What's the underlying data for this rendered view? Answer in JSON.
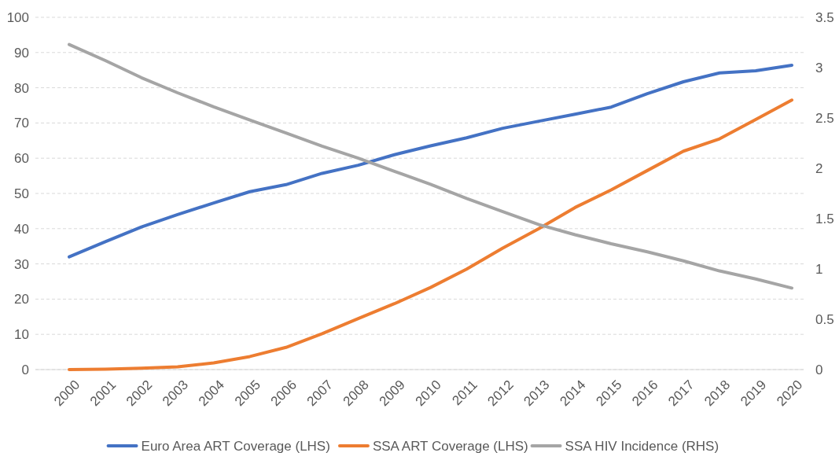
{
  "chart_data": {
    "type": "line",
    "categories": [
      "2000",
      "2001",
      "2002",
      "2003",
      "2004",
      "2005",
      "2006",
      "2007",
      "2008",
      "2009",
      "2010",
      "2011",
      "2012",
      "2013",
      "2014",
      "2015",
      "2016",
      "2017",
      "2018",
      "2019",
      "2020"
    ],
    "series": [
      {
        "name": "Euro Area ART Coverage (LHS)",
        "color": "#4472c4",
        "values": [
          32,
          36.3,
          40.5,
          44,
          47.3,
          50.5,
          52.5,
          55.7,
          58,
          61,
          63.5,
          65.8,
          68.5,
          70.5,
          72.5,
          74.5,
          78.3,
          81.7,
          84.2,
          84.8,
          86.4
        ]
      },
      {
        "name": "SSA ART Coverage (LHS)",
        "color": "#ed7d31",
        "values": [
          0,
          0.1,
          0.4,
          0.8,
          1.9,
          3.7,
          6.3,
          10.2,
          14.5,
          18.7,
          23.3,
          28.5,
          34.5,
          40,
          46,
          51,
          56.5,
          62,
          65.5,
          71,
          76.5
        ]
      },
      {
        "name": "SSA HIV Incidence (RHS)",
        "color": "#a5a5a5",
        "axis": "y2",
        "values": [
          3.23,
          3.07,
          2.9,
          2.75,
          2.61,
          2.48,
          2.35,
          2.22,
          2.1,
          1.97,
          1.84,
          1.7,
          1.57,
          1.44,
          1.34,
          1.25,
          1.17,
          1.08,
          0.98,
          0.9,
          0.81
        ]
      }
    ],
    "ylim": [
      0,
      100
    ],
    "yticks": [
      0,
      10,
      20,
      30,
      40,
      50,
      60,
      70,
      80,
      90,
      100
    ],
    "y2lim": [
      0,
      3.5
    ],
    "y2ticks": [
      0,
      0.5,
      1,
      1.5,
      2,
      2.5,
      3,
      3.5
    ],
    "grid": "y",
    "legend": "bottom",
    "marker": "none",
    "line_style": "solid"
  }
}
